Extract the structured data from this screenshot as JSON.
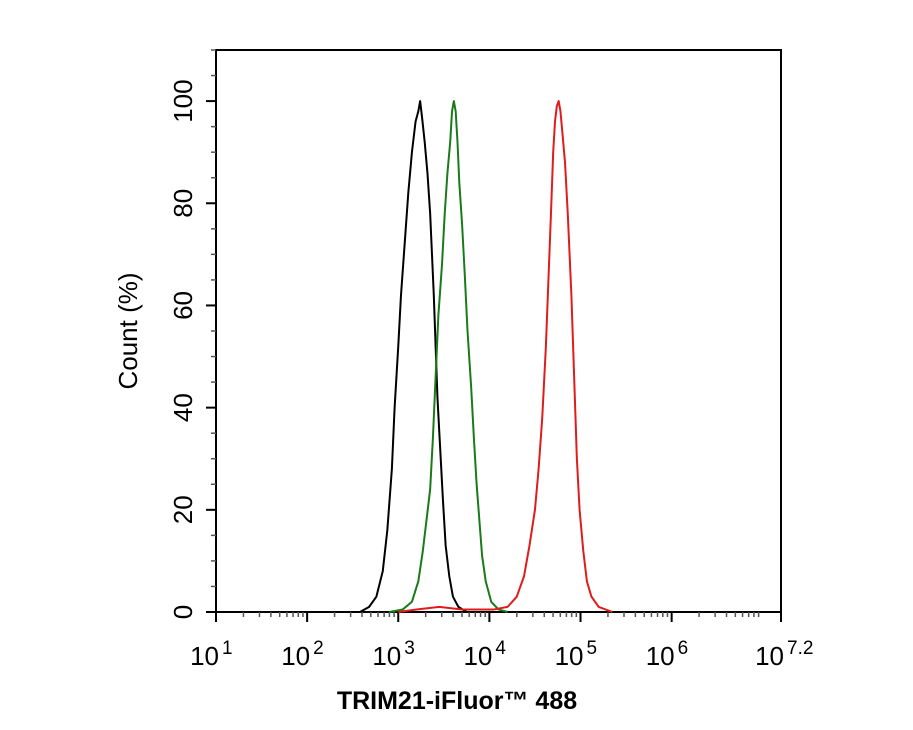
{
  "chart_data": {
    "type": "line",
    "title": "",
    "xlabel": "TRIM21-iFluor™ 488",
    "ylabel": "Count (%)",
    "x_scale": "log10",
    "xlim": [
      1,
      7.2
    ],
    "ylim": [
      0,
      110
    ],
    "grid": false,
    "x_ticks": [
      {
        "base": "10",
        "exp": "1",
        "value": 1
      },
      {
        "base": "10",
        "exp": "2",
        "value": 2
      },
      {
        "base": "10",
        "exp": "3",
        "value": 3
      },
      {
        "base": "10",
        "exp": "4",
        "value": 4
      },
      {
        "base": "10",
        "exp": "5",
        "value": 5
      },
      {
        "base": "10",
        "exp": "6",
        "value": 6
      },
      {
        "base": "10",
        "exp": "7.2",
        "value": 7.2
      }
    ],
    "y_ticks": [
      "0",
      "20",
      "40",
      "60",
      "80",
      "100"
    ],
    "series": [
      {
        "color": "#000000",
        "points": [
          [
            2.58,
            0
          ],
          [
            2.68,
            1
          ],
          [
            2.76,
            3
          ],
          [
            2.83,
            8
          ],
          [
            2.88,
            16
          ],
          [
            2.93,
            28
          ],
          [
            2.96,
            40
          ],
          [
            3.0,
            52
          ],
          [
            3.03,
            62
          ],
          [
            3.07,
            72
          ],
          [
            3.11,
            82
          ],
          [
            3.15,
            90
          ],
          [
            3.19,
            96
          ],
          [
            3.22,
            98
          ],
          [
            3.24,
            100
          ],
          [
            3.26,
            97
          ],
          [
            3.29,
            92
          ],
          [
            3.32,
            86
          ],
          [
            3.35,
            78
          ],
          [
            3.37,
            70
          ],
          [
            3.39,
            62
          ],
          [
            3.41,
            52
          ],
          [
            3.43,
            42
          ],
          [
            3.46,
            32
          ],
          [
            3.49,
            22
          ],
          [
            3.52,
            13
          ],
          [
            3.56,
            7
          ],
          [
            3.6,
            3
          ],
          [
            3.66,
            1
          ],
          [
            3.75,
            0
          ]
        ]
      },
      {
        "color": "#1a7a1a",
        "points": [
          [
            2.9,
            0
          ],
          [
            3.05,
            0.5
          ],
          [
            3.15,
            2
          ],
          [
            3.22,
            6
          ],
          [
            3.27,
            12
          ],
          [
            3.31,
            18
          ],
          [
            3.35,
            24
          ],
          [
            3.38,
            34
          ],
          [
            3.41,
            46
          ],
          [
            3.44,
            58
          ],
          [
            3.48,
            68
          ],
          [
            3.51,
            78
          ],
          [
            3.54,
            86
          ],
          [
            3.57,
            92
          ],
          [
            3.59,
            98
          ],
          [
            3.61,
            100
          ],
          [
            3.63,
            98
          ],
          [
            3.65,
            92
          ],
          [
            3.67,
            84
          ],
          [
            3.7,
            76
          ],
          [
            3.73,
            66
          ],
          [
            3.76,
            55
          ],
          [
            3.8,
            44
          ],
          [
            3.83,
            34
          ],
          [
            3.86,
            25
          ],
          [
            3.89,
            18
          ],
          [
            3.92,
            11
          ],
          [
            3.96,
            6
          ],
          [
            4.02,
            2
          ],
          [
            4.1,
            0.5
          ],
          [
            4.2,
            0
          ]
        ]
      },
      {
        "color": "#e01b1b",
        "points": [
          [
            3.0,
            0
          ],
          [
            3.2,
            0.5
          ],
          [
            3.45,
            1
          ],
          [
            3.7,
            0.5
          ],
          [
            4.05,
            0.5
          ],
          [
            4.2,
            1
          ],
          [
            4.3,
            3
          ],
          [
            4.38,
            7
          ],
          [
            4.44,
            13
          ],
          [
            4.5,
            20
          ],
          [
            4.54,
            28
          ],
          [
            4.58,
            38
          ],
          [
            4.62,
            52
          ],
          [
            4.65,
            66
          ],
          [
            4.68,
            80
          ],
          [
            4.7,
            90
          ],
          [
            4.72,
            96
          ],
          [
            4.74,
            99
          ],
          [
            4.76,
            100
          ],
          [
            4.78,
            98
          ],
          [
            4.8,
            94
          ],
          [
            4.83,
            88
          ],
          [
            4.86,
            78
          ],
          [
            4.9,
            62
          ],
          [
            4.93,
            46
          ],
          [
            4.96,
            30
          ],
          [
            4.99,
            20
          ],
          [
            5.03,
            12
          ],
          [
            5.07,
            6
          ],
          [
            5.12,
            3
          ],
          [
            5.2,
            1
          ],
          [
            5.35,
            0
          ]
        ]
      }
    ]
  }
}
